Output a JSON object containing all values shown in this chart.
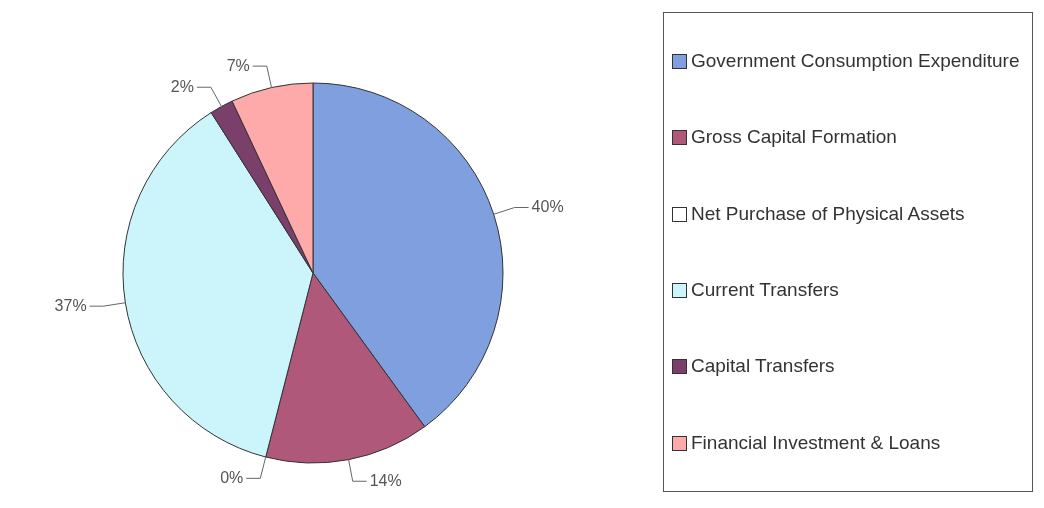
{
  "chart_data": {
    "type": "pie",
    "categories": [
      "Government Consumption Expenditure",
      "Gross Capital Formation",
      "Net Purchase of Physical Assets",
      "Current Transfers",
      "Capital Transfers",
      "Financial Investment & Loans"
    ],
    "values": [
      40,
      14,
      0,
      37,
      2,
      7
    ],
    "colors": [
      "#7f9fdf",
      "#b0587a",
      "#ffffff",
      "#ccf5fb",
      "#7a3f6a",
      "#ffaaaa"
    ],
    "value_labels": [
      "40%",
      "14%",
      "0%",
      "37%",
      "2%",
      "7%"
    ],
    "legend": "right"
  }
}
